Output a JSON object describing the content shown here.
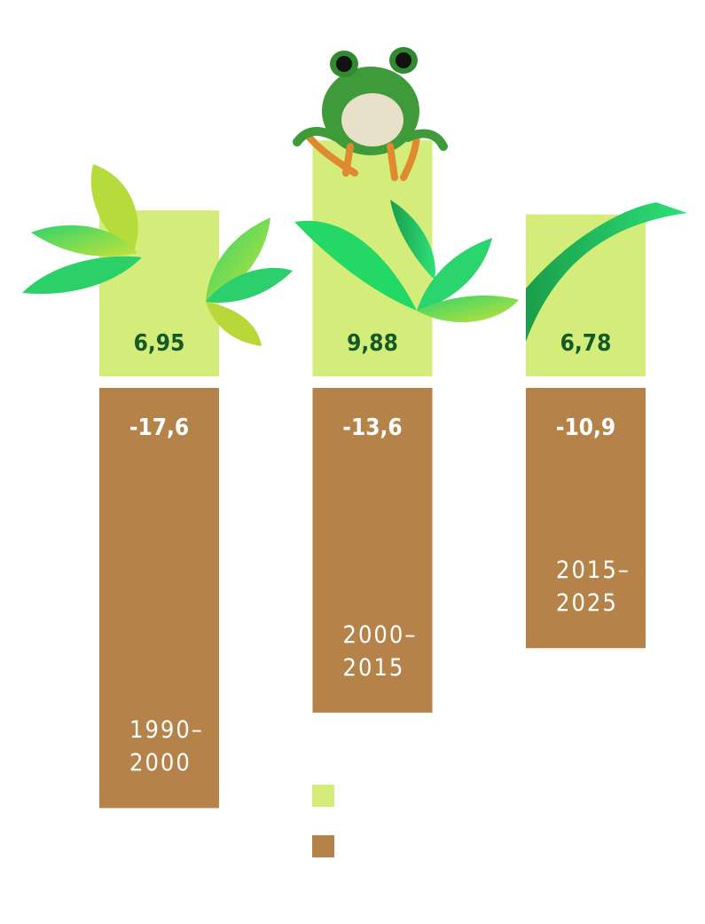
{
  "chart_data": {
    "type": "bar",
    "categories": [
      "1990–2000",
      "2000–2015",
      "2015–2025"
    ],
    "series": [
      {
        "color": "#d4ec7a",
        "values": [
          6.95,
          9.88,
          6.78
        ],
        "value_labels": [
          "6,95",
          "9,88",
          "6,78"
        ]
      },
      {
        "color": "#b5834a",
        "values": [
          -17.6,
          -13.6,
          -10.9
        ],
        "value_labels": [
          "-17,6",
          "-13,6",
          "-10,9"
        ]
      }
    ]
  }
}
